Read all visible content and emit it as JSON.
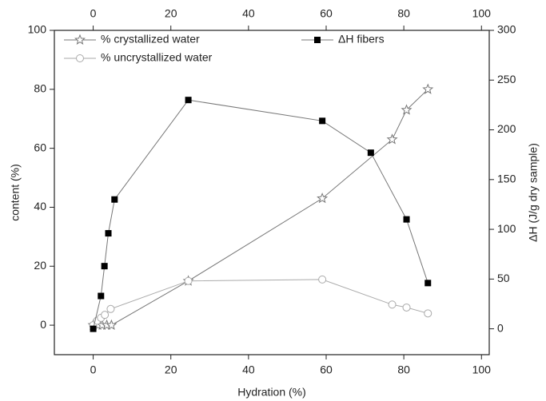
{
  "chart_data": {
    "type": "line",
    "xlabel": "Hydration (%)",
    "ylabel": "content (%)",
    "y2label": "ΔH  (J/g dry sample)",
    "xlim": [
      -10,
      102
    ],
    "xticks": [
      0,
      20,
      40,
      60,
      80,
      100
    ],
    "ylim": [
      -10,
      100
    ],
    "yticks": [
      0,
      20,
      40,
      60,
      80,
      100
    ],
    "y2lim": [
      -26,
      300
    ],
    "y2ticks": [
      0,
      50,
      100,
      150,
      200,
      250,
      300
    ],
    "series": [
      {
        "name": "% crystallized water",
        "color": "#777777",
        "marker": "star",
        "x": [
          0,
          1.2,
          2.3,
          3.5,
          4.7,
          24.5,
          59,
          77,
          80.7,
          86.2
        ],
        "values": [
          0,
          0,
          0,
          0,
          0,
          15,
          43,
          63,
          73,
          80
        ]
      },
      {
        "name": "% uncrystallized water",
        "color": "#aaaaaa",
        "marker": "circle",
        "x": [
          0,
          1,
          2,
          3,
          4.5,
          24.5,
          59,
          77,
          80.7,
          86.2
        ],
        "values": [
          0,
          1.5,
          2.5,
          3.5,
          5.5,
          15,
          15.5,
          7,
          6,
          4
        ]
      },
      {
        "name": "ΔH fibers",
        "color": "#000000",
        "marker": "square",
        "axis": "y2",
        "x": [
          0,
          2,
          2.9,
          3.9,
          5.5,
          24.5,
          59,
          71.5,
          80.7,
          86.2
        ],
        "values": [
          0,
          33,
          63,
          96,
          130,
          230,
          209,
          177,
          110,
          46
        ]
      }
    ]
  }
}
